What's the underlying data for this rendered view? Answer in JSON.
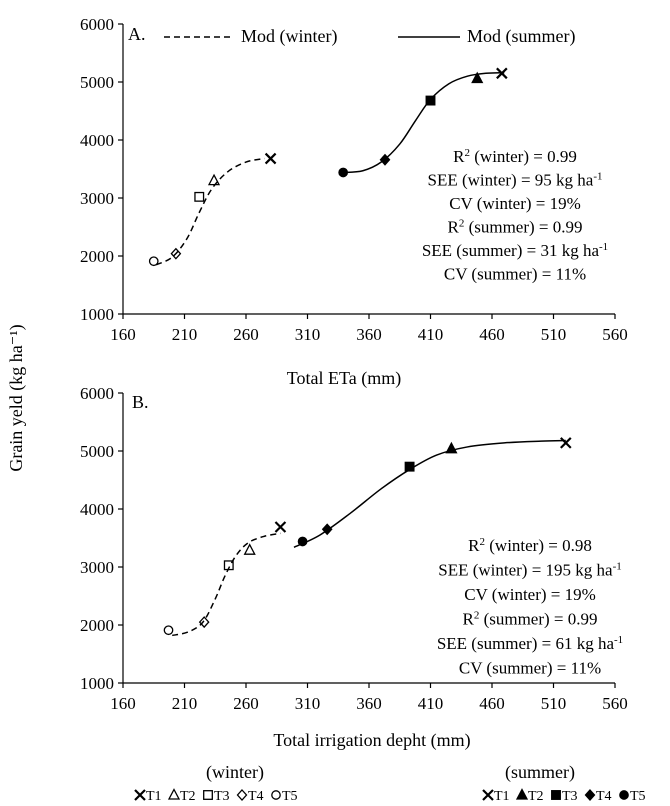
{
  "y_label": "Grain yeld (kg ha⁻¹)",
  "legend": {
    "dashed": "Mod (winter)",
    "solid": "Mod (summer)"
  },
  "key": {
    "winter_heading": "(winter)",
    "summer_heading": "(summer)",
    "winter_items": [
      "T1",
      "T2",
      "T3",
      "T4",
      "T5"
    ],
    "summer_items": [
      "T1",
      "T2",
      "T3",
      "T4",
      "T5"
    ]
  },
  "colors": {
    "ink": "#000000",
    "background": "#ffffff"
  },
  "chart_data": [
    {
      "type": "scatter",
      "panel_label": "A.",
      "xlabel": "Total ETa (mm)",
      "ylabel": "Grain yeld (kg ha⁻¹)",
      "xlim": [
        160,
        560
      ],
      "ylim": [
        1000,
        6000
      ],
      "xticks": [
        "160",
        "210",
        "260",
        "310",
        "360",
        "410",
        "460",
        "510",
        "560"
      ],
      "yticks": [
        "1000",
        "2000",
        "3000",
        "4000",
        "5000",
        "6000"
      ],
      "grid": false,
      "legend_position": "top",
      "stats": [
        {
          "key": "R",
          "sup": "2",
          "rest": " (winter) = 0.99"
        },
        {
          "key": "SEE (winter) = 95 kg ha",
          "sup": "-1",
          "rest": ""
        },
        {
          "key": "CV (winter) = 19%",
          "sup": "",
          "rest": ""
        },
        {
          "key": "R",
          "sup": "2",
          "rest": " (summer) = 0.99"
        },
        {
          "key": "SEE (summer) = 31 kg ha",
          "sup": "-1",
          "rest": ""
        },
        {
          "key": "CV (summer) = 11%",
          "sup": "",
          "rest": ""
        }
      ],
      "series": [
        {
          "season": "winter",
          "points": [
            {
              "treatment": "T5",
              "marker": "circle-open",
              "x": 185,
              "y": 1910
            },
            {
              "treatment": "T4",
              "marker": "diamond-open",
              "x": 203,
              "y": 2040
            },
            {
              "treatment": "T3",
              "marker": "square-open",
              "x": 222,
              "y": 3020
            },
            {
              "treatment": "T2",
              "marker": "triangle-open",
              "x": 234,
              "y": 3300
            },
            {
              "treatment": "T1",
              "marker": "x",
              "x": 280,
              "y": 3680
            }
          ],
          "model_curve": [
            [
              187,
              1850
            ],
            [
              200,
              1980
            ],
            [
              212,
              2300
            ],
            [
              222,
              2750
            ],
            [
              232,
              3150
            ],
            [
              245,
              3450
            ],
            [
              260,
              3620
            ],
            [
              275,
              3680
            ]
          ]
        },
        {
          "season": "summer",
          "points": [
            {
              "treatment": "T5",
              "marker": "circle-filled",
              "x": 339,
              "y": 3440
            },
            {
              "treatment": "T4",
              "marker": "diamond-filled",
              "x": 373,
              "y": 3660
            },
            {
              "treatment": "T3",
              "marker": "square-filled",
              "x": 410,
              "y": 4680
            },
            {
              "treatment": "T2",
              "marker": "triangle-filled",
              "x": 448,
              "y": 5060
            },
            {
              "treatment": "T1",
              "marker": "x",
              "x": 468,
              "y": 5150
            }
          ],
          "model_curve": [
            [
              339,
              3440
            ],
            [
              355,
              3470
            ],
            [
              370,
              3620
            ],
            [
              385,
              3930
            ],
            [
              398,
              4340
            ],
            [
              410,
              4700
            ],
            [
              425,
              4970
            ],
            [
              440,
              5100
            ],
            [
              455,
              5150
            ],
            [
              470,
              5160
            ]
          ]
        }
      ]
    },
    {
      "type": "scatter",
      "panel_label": "B.",
      "xlabel": "Total irrigation depht (mm)",
      "ylabel": "Grain yeld (kg ha⁻¹)",
      "xlim": [
        160,
        560
      ],
      "ylim": [
        1000,
        6000
      ],
      "xticks": [
        "160",
        "210",
        "260",
        "310",
        "360",
        "410",
        "460",
        "510",
        "560"
      ],
      "yticks": [
        "1000",
        "2000",
        "3000",
        "4000",
        "5000",
        "6000"
      ],
      "grid": false,
      "stats": [
        {
          "key": "R",
          "sup": "2",
          "rest": " (winter) = 0.98"
        },
        {
          "key": "SEE (winter) = 195 kg ha",
          "sup": "-1",
          "rest": ""
        },
        {
          "key": "CV (winter) = 19%",
          "sup": "",
          "rest": ""
        },
        {
          "key": "R",
          "sup": "2",
          "rest": " (summer) = 0.99"
        },
        {
          "key": "SEE (summer) = 61 kg ha",
          "sup": "-1",
          "rest": ""
        },
        {
          "key": "CV (summer) = 11%",
          "sup": "",
          "rest": ""
        }
      ],
      "series": [
        {
          "season": "winter",
          "points": [
            {
              "treatment": "T5",
              "marker": "circle-open",
              "x": 197,
              "y": 1910
            },
            {
              "treatment": "T4",
              "marker": "diamond-open",
              "x": 226,
              "y": 2050
            },
            {
              "treatment": "T3",
              "marker": "square-open",
              "x": 246,
              "y": 3030
            },
            {
              "treatment": "T2",
              "marker": "triangle-open",
              "x": 263,
              "y": 3290
            },
            {
              "treatment": "T1",
              "marker": "x",
              "x": 288,
              "y": 3690
            }
          ],
          "model_curve": [
            [
              200,
              1820
            ],
            [
              213,
              1880
            ],
            [
              225,
              2050
            ],
            [
              235,
              2450
            ],
            [
              243,
              2850
            ],
            [
              252,
              3200
            ],
            [
              262,
              3420
            ],
            [
              275,
              3530
            ],
            [
              288,
              3580
            ]
          ]
        },
        {
          "season": "summer",
          "points": [
            {
              "treatment": "T5",
              "marker": "circle-filled",
              "x": 306,
              "y": 3440
            },
            {
              "treatment": "T4",
              "marker": "diamond-filled",
              "x": 326,
              "y": 3650
            },
            {
              "treatment": "T3",
              "marker": "square-filled",
              "x": 393,
              "y": 4730
            },
            {
              "treatment": "T2",
              "marker": "triangle-filled",
              "x": 427,
              "y": 5040
            },
            {
              "treatment": "T1",
              "marker": "x",
              "x": 520,
              "y": 5140
            }
          ],
          "model_curve": [
            [
              299,
              3340
            ],
            [
              320,
              3550
            ],
            [
              345,
              3930
            ],
            [
              370,
              4350
            ],
            [
              393,
              4680
            ],
            [
              415,
              4930
            ],
            [
              440,
              5070
            ],
            [
              470,
              5140
            ],
            [
              500,
              5170
            ],
            [
              520,
              5180
            ]
          ]
        }
      ]
    }
  ]
}
